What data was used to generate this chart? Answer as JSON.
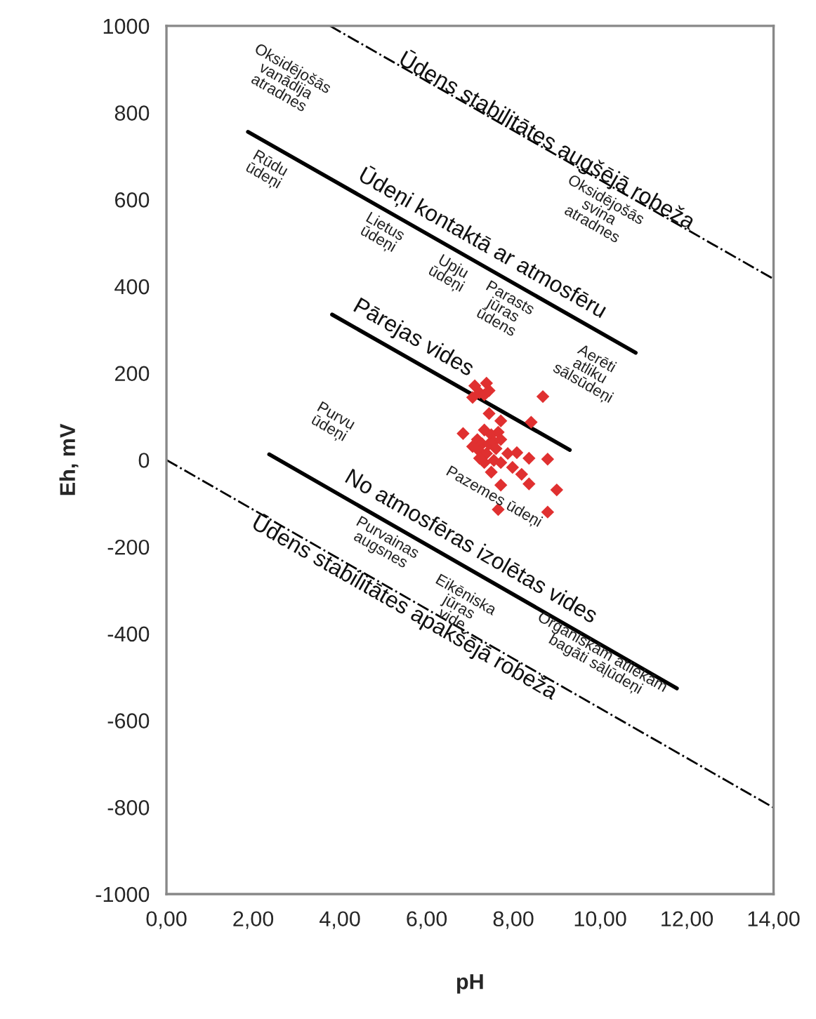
{
  "chart_data": {
    "type": "scatter",
    "xlabel": "pH",
    "ylabel": "Eh, mV",
    "xlim": [
      0,
      14
    ],
    "ylim": [
      -1000,
      1000
    ],
    "xticks": [
      {
        "value": 0,
        "label": "0,00"
      },
      {
        "value": 2,
        "label": "2,00"
      },
      {
        "value": 4,
        "label": "4,00"
      },
      {
        "value": 6,
        "label": "6,00"
      },
      {
        "value": 8,
        "label": "8,00"
      },
      {
        "value": 10,
        "label": "10,00"
      },
      {
        "value": 12,
        "label": "12,00"
      },
      {
        "value": 14,
        "label": "14,00"
      }
    ],
    "yticks": [
      -1000,
      -800,
      -600,
      -400,
      -200,
      0,
      200,
      400,
      600,
      800,
      1000
    ],
    "grid": false,
    "legend": false,
    "series": [
      {
        "type": "line",
        "name": "Ūdens stabilitātes augšējā robeža",
        "color": "#000000",
        "line_style": "dashdot",
        "marker": "none",
        "x": [
          3.77,
          14
        ],
        "values": [
          1000,
          417
        ]
      },
      {
        "type": "line",
        "name": "Ūdeņi kontaktā ar atmosfēru",
        "color": "#000000",
        "line_style": "solid",
        "marker": "none",
        "x": [
          1.88,
          10.82
        ],
        "values": [
          756,
          247
        ]
      },
      {
        "type": "line",
        "name": "Pārejas vides",
        "color": "#000000",
        "line_style": "solid",
        "marker": "none",
        "x": [
          3.82,
          9.3
        ],
        "values": [
          335,
          23
        ]
      },
      {
        "type": "line",
        "name": "No atmosfēras izolētas vides",
        "color": "#000000",
        "line_style": "solid",
        "marker": "none",
        "x": [
          2.37,
          11.77
        ],
        "values": [
          13,
          -526
        ]
      },
      {
        "type": "line",
        "name": "Ūdens stabilitātes apakšējā robeža",
        "color": "#000000",
        "line_style": "dashdot",
        "marker": "none",
        "x": [
          0,
          14
        ],
        "values": [
          0,
          -801
        ]
      },
      {
        "color": "#e03030",
        "marker": "diamond",
        "x": [
          7.11,
          7.38,
          7.22,
          7.06,
          7.33,
          7.44,
          8.68,
          7.44,
          7.71,
          8.41,
          6.84,
          7.33,
          7.49,
          7.65,
          7.17,
          7.28,
          7.44,
          7.55,
          7.71,
          7.22,
          7.38,
          7.6,
          7.87,
          8.08,
          8.36,
          8.79,
          7.33,
          7.55,
          7.71,
          7.98,
          8.19,
          8.36,
          7.71,
          9.0,
          7.65,
          8.79,
          7.49,
          7.22,
          7.06
        ],
        "values": [
          171,
          177,
          155,
          144,
          150,
          160,
          146,
          107,
          90,
          87,
          61,
          69,
          58,
          64,
          47,
          37,
          37,
          42,
          47,
          20,
          15,
          26,
          15,
          17,
          4,
          2,
          -6,
          -1,
          -6,
          -17,
          -33,
          -55,
          -58,
          -69,
          -114,
          -120,
          -28,
          4,
          31
        ]
      }
    ],
    "annotations": [
      "Oksidējošās\nvanādija\natradnes",
      "Rūdu\nūdeņi",
      "Lietus\nūdeņi",
      "Upju\nūdeņi",
      "Parasts\njūras\nūdens",
      "Oksidējošās\nsvina\natradnes",
      "Aerēti\natliku\nsālsūdeņi",
      "Purvu\nūdeņi",
      "Pazemes ūdeņi",
      "Purvainas\naugsnes",
      "Eikēniska\njūras\nvide",
      "Organiskām atliekām\nbagāti sāļūdeņi"
    ]
  }
}
